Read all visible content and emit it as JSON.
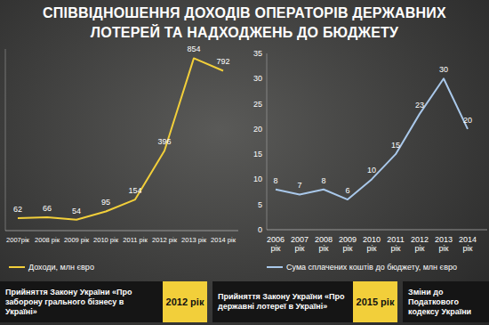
{
  "title": "СПІВВІДНОШЕННЯ ДОХОДІВ ОПЕРАТОРІВ ДЕРЖАВНИХ ЛОТЕРЕЙ ТА НАДХОДЖЕНЬ ДО БЮДЖЕТУ",
  "chart_data": [
    {
      "type": "line",
      "categories": [
        "2007рік",
        "2008 рік",
        "2009 рік",
        "2010 рік",
        "2011 рік",
        "2012 рік",
        "2013 рік",
        "2014 рік"
      ],
      "series": [
        {
          "name": "Доходи, млн євро",
          "color": "#f2cf3a",
          "values": [
            62,
            66,
            54,
            95,
            154,
            396,
            854,
            792
          ]
        }
      ],
      "ylim": [
        0,
        900
      ],
      "tick_labels": "x",
      "data_labels": true,
      "legend": "bottom",
      "grid": false
    },
    {
      "type": "line",
      "categories": [
        "2006 рік",
        "2007 рік",
        "2008 рік",
        "2009 рік",
        "2010 рік",
        "2011 рік",
        "2012 рік",
        "2013 рік",
        "2014 рік"
      ],
      "series": [
        {
          "name": "Сума сплачених коштів до бюджету, млн євро",
          "color": "#a9c8ea",
          "values": [
            8,
            7,
            8,
            6,
            10,
            15,
            23,
            30,
            20
          ]
        }
      ],
      "ylim": [
        0,
        35
      ],
      "yticks": [
        0,
        5,
        10,
        15,
        20,
        25,
        30,
        35
      ],
      "data_labels": true,
      "legend": "bottom",
      "grid": false
    }
  ],
  "events": [
    {
      "text": "Прийняття Закону України «Про заборону грального бізнесу в Україні»",
      "year": "2012 рік"
    },
    {
      "text": "Прийняття Закону України «Про державні лотереї в Україні»",
      "year": "2015 рік"
    },
    {
      "text": "Зміни до Податкового кодексу України"
    }
  ]
}
